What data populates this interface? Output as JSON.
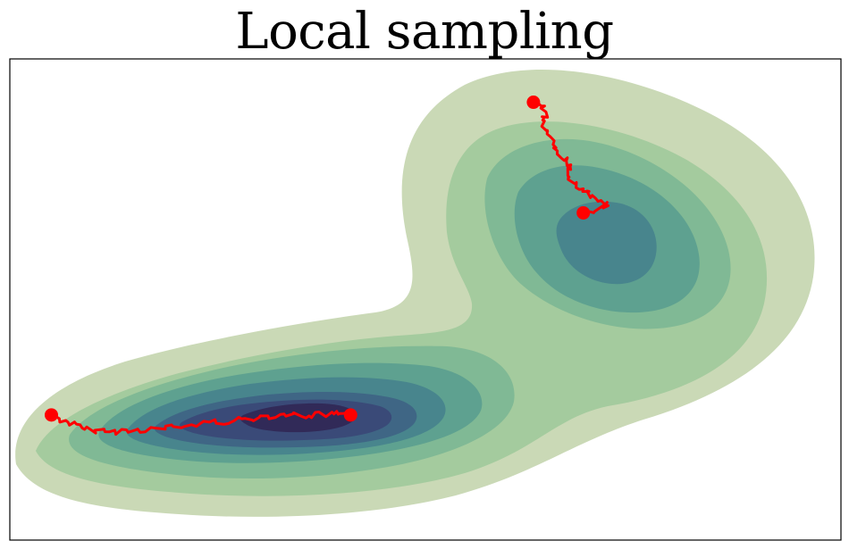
{
  "chart_data": {
    "type": "contour",
    "title": "Local sampling",
    "xlabel": "",
    "ylabel": "",
    "ticks": "none",
    "grid": false,
    "colors": {
      "levels": [
        "#cad9b6",
        "#a4cb9e",
        "#80b995",
        "#5ea190",
        "#48858d",
        "#3f6685",
        "#3a4a78",
        "#312a58"
      ],
      "trajectory": "#ff0000"
    },
    "chains": [
      {
        "start": [
          0.05,
          0.26
        ],
        "end": [
          0.41,
          0.26
        ],
        "path": [
          [
            0.05,
            0.26
          ],
          [
            0.07,
            0.245
          ],
          [
            0.09,
            0.23
          ],
          [
            0.12,
            0.225
          ],
          [
            0.15,
            0.228
          ],
          [
            0.18,
            0.232
          ],
          [
            0.21,
            0.236
          ],
          [
            0.24,
            0.245
          ],
          [
            0.27,
            0.248
          ],
          [
            0.3,
            0.255
          ],
          [
            0.33,
            0.262
          ],
          [
            0.36,
            0.258
          ],
          [
            0.39,
            0.262
          ],
          [
            0.41,
            0.26
          ]
        ]
      },
      {
        "start": [
          0.63,
          0.91
        ],
        "end": [
          0.69,
          0.68
        ],
        "path": [
          [
            0.63,
            0.91
          ],
          [
            0.645,
            0.89
          ],
          [
            0.64,
            0.86
          ],
          [
            0.655,
            0.83
          ],
          [
            0.66,
            0.8
          ],
          [
            0.675,
            0.78
          ],
          [
            0.672,
            0.755
          ],
          [
            0.69,
            0.73
          ],
          [
            0.705,
            0.71
          ],
          [
            0.72,
            0.695
          ],
          [
            0.695,
            0.68
          ],
          [
            0.69,
            0.68
          ]
        ]
      }
    ]
  }
}
